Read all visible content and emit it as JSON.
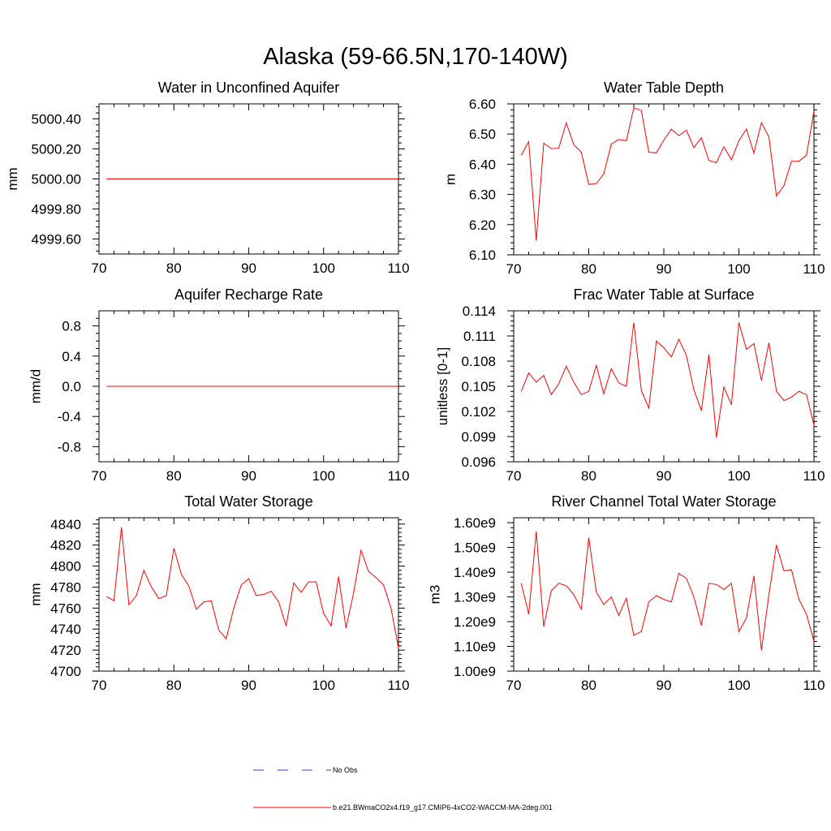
{
  "figure": {
    "title": "Alaska (59-66.5N,170-140W)",
    "line_color": "#ff0000",
    "obs_color": "#3b3bd6"
  },
  "legend": {
    "entries": [
      {
        "label": "No Obs",
        "style": "dashed",
        "color": "#3b3bd6"
      },
      {
        "label": "b.e21.BWmaCO2x4.f19_g17.CMIP6-4xCO2-WACCM-MA-2deg.001",
        "style": "solid",
        "color": "#ff0000"
      }
    ]
  },
  "chart_data": [
    {
      "type": "line",
      "title": "Water in Unconfined Aquifer",
      "ylabel": "mm",
      "xlim": [
        70,
        110
      ],
      "ylim": [
        4999.5,
        5000.5
      ],
      "xticks": [
        70,
        80,
        90,
        100,
        110
      ],
      "yticks": [
        4999.6,
        4999.8,
        5000.0,
        5000.2,
        5000.4
      ],
      "ytick_labels": [
        "4999.60",
        "4999.80",
        "5000.00",
        "5000.20",
        "5000.40"
      ],
      "minor_yticks": [
        4999.52,
        4999.56,
        4999.64,
        4999.68,
        4999.72,
        4999.76,
        4999.84,
        4999.88,
        4999.92,
        4999.96,
        5000.04,
        5000.08,
        5000.12,
        5000.16,
        5000.24,
        5000.28,
        5000.32,
        5000.36,
        5000.44,
        5000.48
      ],
      "x": [
        71,
        110
      ],
      "series": [
        {
          "values": [
            5000.0,
            5000.0
          ]
        }
      ]
    },
    {
      "type": "line",
      "title": "Water Table Depth",
      "ylabel": "m",
      "xlim": [
        70,
        110
      ],
      "ylim": [
        6.1,
        6.6
      ],
      "xticks": [
        70,
        80,
        90,
        100,
        110
      ],
      "yticks": [
        6.1,
        6.2,
        6.3,
        6.4,
        6.5,
        6.6
      ],
      "ytick_labels": [
        "6.10",
        "6.20",
        "6.30",
        "6.40",
        "6.50",
        "6.60"
      ],
      "minor_yticks": [
        6.12,
        6.14,
        6.16,
        6.18,
        6.22,
        6.24,
        6.26,
        6.28,
        6.32,
        6.34,
        6.36,
        6.38,
        6.42,
        6.44,
        6.46,
        6.48,
        6.52,
        6.54,
        6.56,
        6.58
      ],
      "x": [
        71,
        72,
        73,
        74,
        75,
        76,
        77,
        78,
        79,
        80,
        81,
        82,
        83,
        84,
        85,
        86,
        87,
        88,
        89,
        90,
        91,
        92,
        93,
        94,
        95,
        96,
        97,
        98,
        99,
        100,
        101,
        102,
        103,
        104,
        105,
        106,
        107,
        108,
        109,
        110
      ],
      "series": [
        {
          "values": [
            6.43,
            6.475,
            6.147,
            6.47,
            6.452,
            6.453,
            6.537,
            6.465,
            6.44,
            6.333,
            6.336,
            6.368,
            6.467,
            6.482,
            6.478,
            6.587,
            6.578,
            6.44,
            6.438,
            6.48,
            6.516,
            6.495,
            6.513,
            6.455,
            6.488,
            6.413,
            6.405,
            6.458,
            6.415,
            6.478,
            6.517,
            6.437,
            6.538,
            6.49,
            6.295,
            6.329,
            6.41,
            6.41,
            6.43,
            6.576
          ]
        }
      ]
    },
    {
      "type": "line",
      "title": "Aquifer Recharge Rate",
      "ylabel": "mm/d",
      "xlim": [
        70,
        110
      ],
      "ylim": [
        -1.0,
        1.0
      ],
      "xticks": [
        70,
        80,
        90,
        100,
        110
      ],
      "yticks": [
        -0.8,
        -0.4,
        0.0,
        0.4,
        0.8
      ],
      "ytick_labels": [
        "-0.8",
        "-0.4",
        "0.0",
        "0.4",
        "0.8"
      ],
      "minor_yticks": [
        -0.9,
        -0.7,
        -0.6,
        -0.5,
        -0.3,
        -0.2,
        -0.1,
        0.1,
        0.2,
        0.3,
        0.5,
        0.6,
        0.7,
        0.9
      ],
      "x": [
        71,
        110
      ],
      "series": [
        {
          "values": [
            0.0,
            0.0
          ]
        }
      ]
    },
    {
      "type": "line",
      "title": "Frac Water Table at Surface",
      "ylabel": "unitless [0-1]",
      "xlim": [
        70,
        110
      ],
      "ylim": [
        0.096,
        0.114
      ],
      "xticks": [
        70,
        80,
        90,
        100,
        110
      ],
      "yticks": [
        0.096,
        0.099,
        0.102,
        0.105,
        0.108,
        0.111,
        0.114
      ],
      "ytick_labels": [
        "0.096",
        "0.099",
        "0.102",
        "0.105",
        "0.108",
        "0.111",
        "0.114"
      ],
      "minor_yticks": [
        0.0966,
        0.0972,
        0.0978,
        0.0984,
        0.0996,
        0.1002,
        0.1008,
        0.1014,
        0.1026,
        0.1032,
        0.1038,
        0.1044,
        0.1056,
        0.1062,
        0.1068,
        0.1074,
        0.1086,
        0.1092,
        0.1098,
        0.1104,
        0.1116,
        0.1122,
        0.1128,
        0.1134
      ],
      "x": [
        71,
        72,
        73,
        74,
        75,
        76,
        77,
        78,
        79,
        80,
        81,
        82,
        83,
        84,
        85,
        86,
        87,
        88,
        89,
        90,
        91,
        92,
        93,
        94,
        95,
        96,
        97,
        98,
        99,
        100,
        101,
        102,
        103,
        104,
        105,
        106,
        107,
        108,
        109,
        110
      ],
      "series": [
        {
          "values": [
            0.1044,
            0.1066,
            0.1055,
            0.1063,
            0.104,
            0.1053,
            0.1074,
            0.1055,
            0.104,
            0.1044,
            0.1075,
            0.1041,
            0.1071,
            0.1054,
            0.105,
            0.1126,
            0.1045,
            0.1024,
            0.1104,
            0.1096,
            0.1085,
            0.1106,
            0.1087,
            0.1046,
            0.1021,
            0.1088,
            0.0989,
            0.1049,
            0.1028,
            0.1126,
            0.1094,
            0.1101,
            0.1057,
            0.1102,
            0.1044,
            0.1033,
            0.1037,
            0.1044,
            0.104,
            0.1004
          ]
        }
      ]
    },
    {
      "type": "line",
      "title": "Total Water Storage",
      "ylabel": "mm",
      "xlim": [
        70,
        110
      ],
      "ylim": [
        4700,
        4846
      ],
      "xticks": [
        70,
        80,
        90,
        100,
        110
      ],
      "yticks": [
        4700,
        4720,
        4740,
        4760,
        4780,
        4800,
        4820,
        4840
      ],
      "ytick_labels": [
        "4700",
        "4720",
        "4740",
        "4760",
        "4780",
        "4800",
        "4820",
        "4840"
      ],
      "minor_yticks": [
        4704,
        4708,
        4712,
        4716,
        4724,
        4728,
        4732,
        4736,
        4744,
        4748,
        4752,
        4756,
        4764,
        4768,
        4772,
        4776,
        4784,
        4788,
        4792,
        4796,
        4804,
        4808,
        4812,
        4816,
        4824,
        4828,
        4832,
        4836,
        4844
      ],
      "x": [
        71,
        72,
        73,
        74,
        75,
        76,
        77,
        78,
        79,
        80,
        81,
        82,
        83,
        84,
        85,
        86,
        87,
        88,
        89,
        90,
        91,
        92,
        93,
        94,
        95,
        96,
        97,
        98,
        99,
        100,
        101,
        102,
        103,
        104,
        105,
        106,
        107,
        108,
        109,
        110
      ],
      "series": [
        {
          "values": [
            4771,
            4767,
            4837,
            4763,
            4772,
            4796,
            4780,
            4769,
            4772,
            4817,
            4792,
            4781,
            4759,
            4766,
            4767,
            4739,
            4731,
            4760,
            4782,
            4788,
            4772,
            4773,
            4776,
            4766,
            4743,
            4784,
            4775,
            4785,
            4785,
            4755,
            4743,
            4790,
            4741,
            4774,
            4815,
            4795,
            4789,
            4782,
            4760,
            4722
          ]
        }
      ]
    },
    {
      "type": "line",
      "title": "River Channel Total Water Storage",
      "ylabel": "m3",
      "xlim": [
        70,
        110
      ],
      "ylim": [
        1000000000,
        1620000000
      ],
      "xticks": [
        70,
        80,
        90,
        100,
        110
      ],
      "yticks": [
        1000000000,
        1100000000,
        1200000000,
        1300000000,
        1400000000,
        1500000000,
        1600000000
      ],
      "ytick_labels": [
        "1.00e9",
        "1.10e9",
        "1.20e9",
        "1.30e9",
        "1.40e9",
        "1.50e9",
        "1.60e9"
      ],
      "minor_yticks": [
        1020000000,
        1040000000,
        1060000000,
        1080000000,
        1120000000,
        1140000000,
        1160000000,
        1180000000,
        1220000000,
        1240000000,
        1260000000,
        1280000000,
        1320000000,
        1340000000,
        1360000000,
        1380000000,
        1420000000,
        1440000000,
        1460000000,
        1480000000,
        1520000000,
        1540000000,
        1560000000,
        1580000000
      ],
      "x": [
        71,
        72,
        73,
        74,
        75,
        76,
        77,
        78,
        79,
        80,
        81,
        82,
        83,
        84,
        85,
        86,
        87,
        88,
        89,
        90,
        91,
        92,
        93,
        94,
        95,
        96,
        97,
        98,
        99,
        100,
        101,
        102,
        103,
        104,
        105,
        106,
        107,
        108,
        109,
        110
      ],
      "series": [
        {
          "values": [
            1355000000,
            1230000000,
            1565000000,
            1180000000,
            1325000000,
            1355000000,
            1345000000,
            1310000000,
            1250000000,
            1540000000,
            1320000000,
            1270000000,
            1300000000,
            1225000000,
            1295000000,
            1145000000,
            1160000000,
            1280000000,
            1305000000,
            1290000000,
            1280000000,
            1395000000,
            1375000000,
            1300000000,
            1185000000,
            1355000000,
            1350000000,
            1330000000,
            1355000000,
            1160000000,
            1215000000,
            1385000000,
            1085000000,
            1310000000,
            1510000000,
            1405000000,
            1410000000,
            1290000000,
            1230000000,
            1120000000
          ]
        }
      ]
    }
  ]
}
